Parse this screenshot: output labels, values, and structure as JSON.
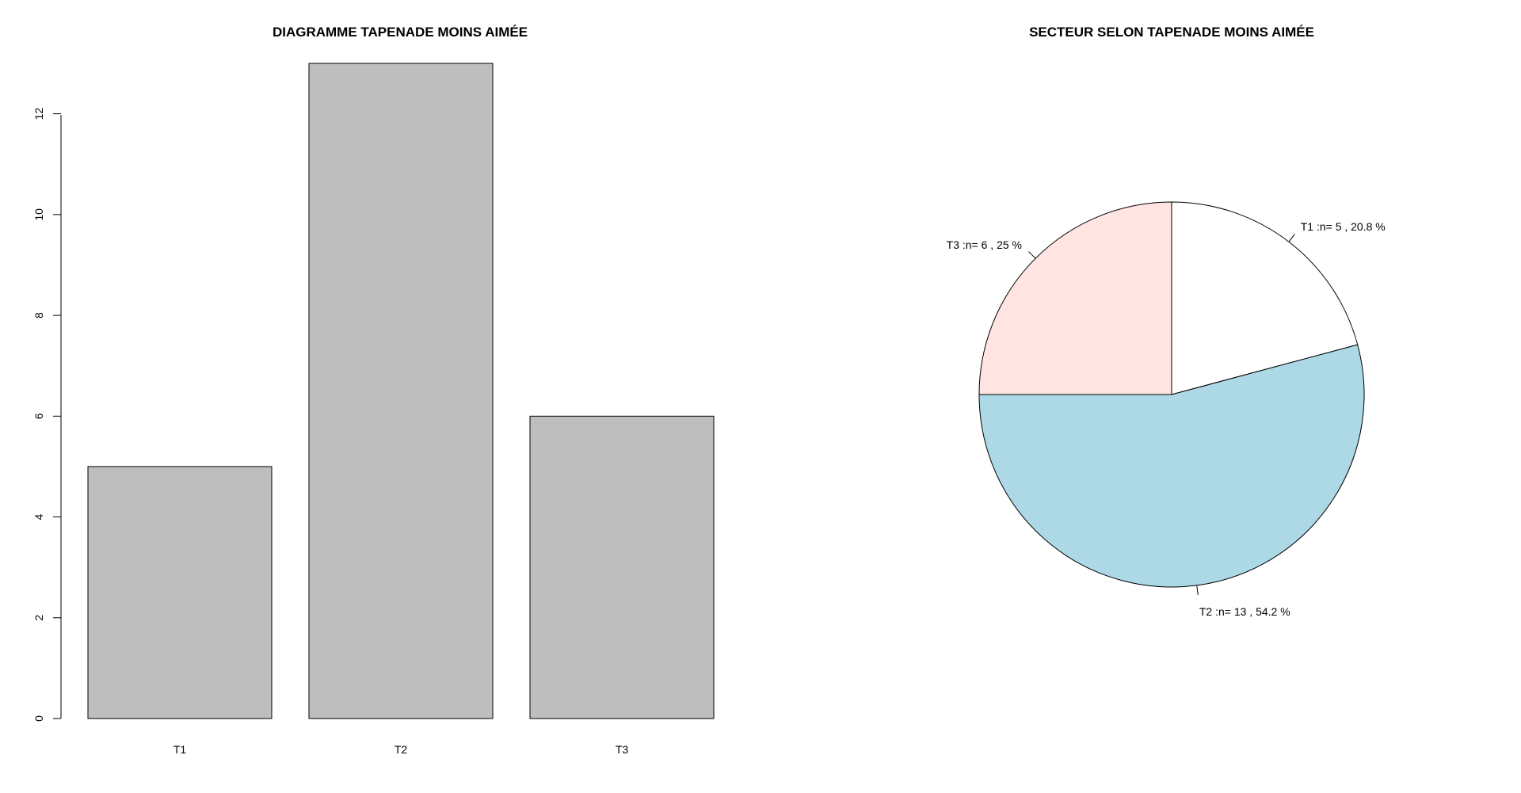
{
  "chart_data": [
    {
      "type": "bar",
      "title": "DIAGRAMME TAPENADE MOINS AIMÉE",
      "categories": [
        "T1",
        "T2",
        "T3"
      ],
      "values": [
        5,
        13,
        6
      ],
      "ylim": [
        0,
        13
      ],
      "y_ticks": [
        0,
        2,
        4,
        6,
        8,
        10,
        12
      ],
      "y_tick_labels": [
        "0",
        "2",
        "4",
        "6",
        "8",
        "10",
        "12"
      ],
      "xlabel": "",
      "ylabel": "",
      "grid": false,
      "bar_color": "#bebebe",
      "border_color": "#000000"
    },
    {
      "type": "pie",
      "title": "SECTEUR SELON TAPENADE MOINS AIMÉE",
      "grid": false,
      "slices": [
        {
          "category": "T1",
          "value": 5,
          "percent": 20.8,
          "label": "T1 :n= 5 , 20.8 %",
          "color": "#ffffff"
        },
        {
          "category": "T2",
          "value": 13,
          "percent": 54.2,
          "label": "T2 :n= 13 , 54.2 %",
          "color": "#add8e6"
        },
        {
          "category": "T3",
          "value": 6,
          "percent": 25,
          "label": "T3 :n= 6 , 25 %",
          "color": "#ffe4e1"
        }
      ],
      "start_angle_deg": 90,
      "direction": "clockwise",
      "border_color": "#000000"
    }
  ]
}
